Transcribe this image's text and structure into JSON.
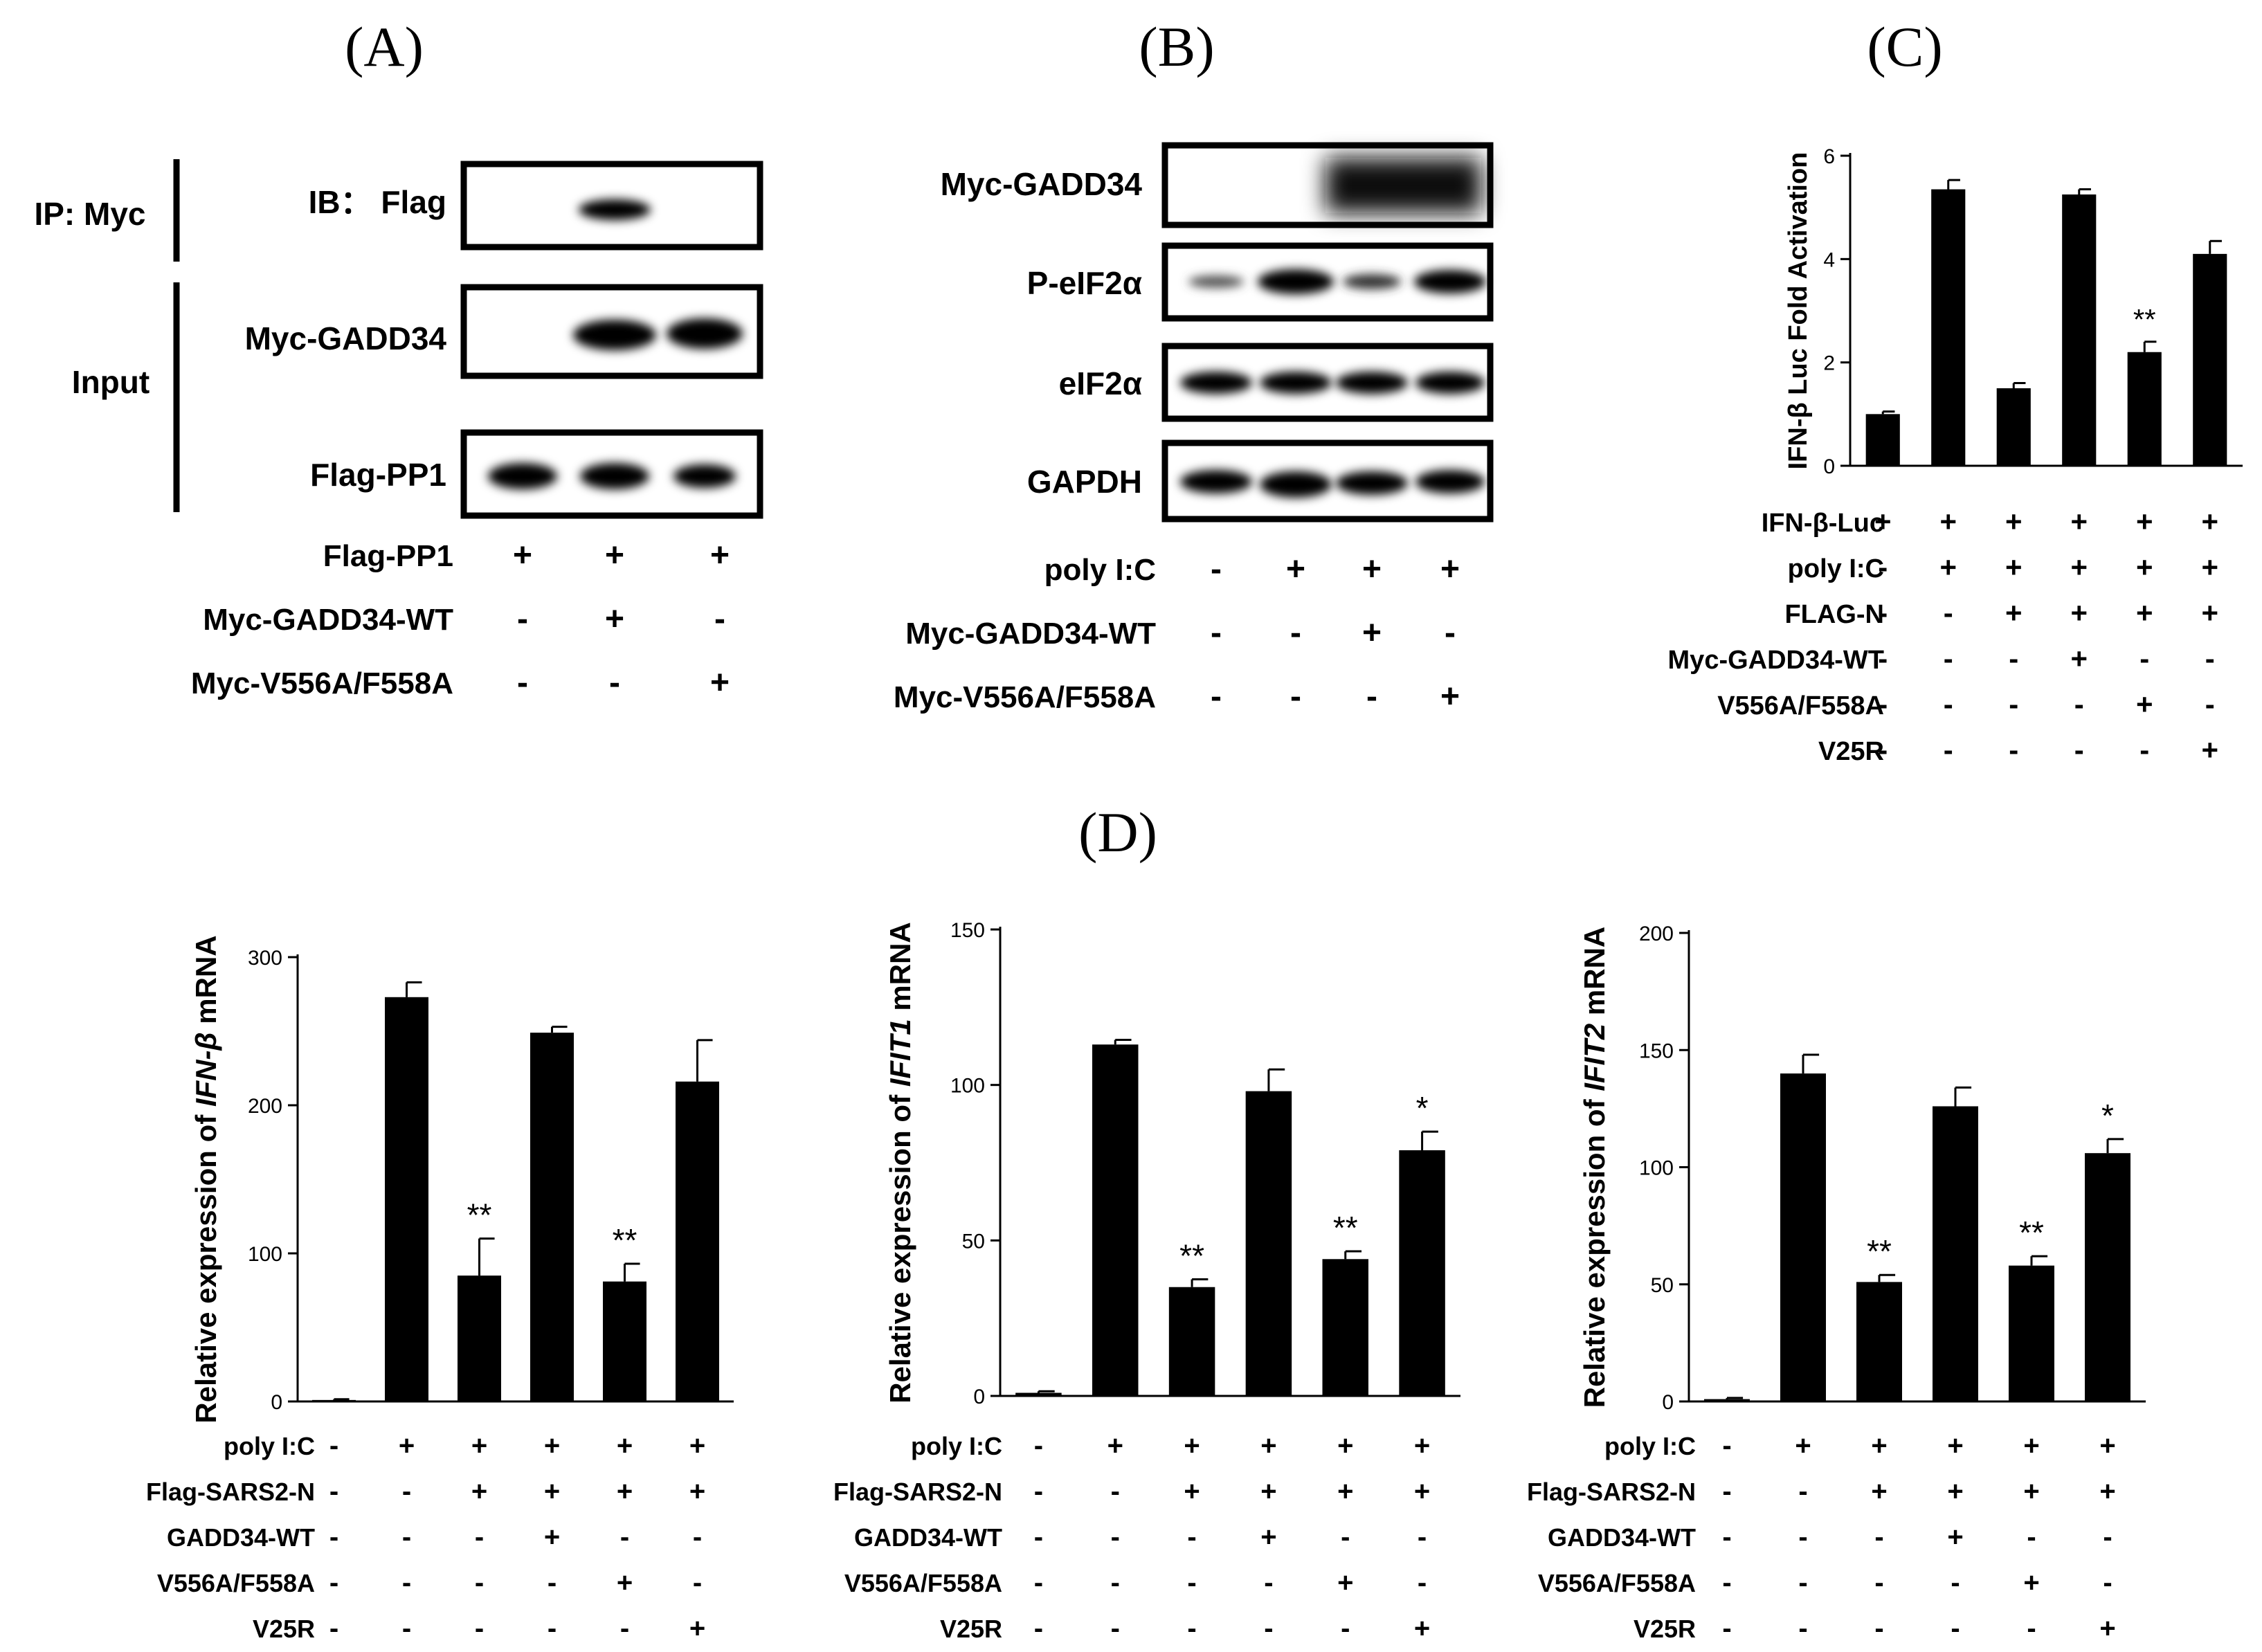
{
  "panels": {
    "A": {
      "label": "(A)",
      "ip_label": "IP: Myc",
      "input_label": "Input",
      "blots": [
        "IB： Flag",
        "Myc-GADD34",
        "Flag-PP1"
      ],
      "conditions": [
        {
          "name": "Flag-PP1",
          "values": [
            "+",
            "+",
            "+"
          ]
        },
        {
          "name": "Myc-GADD34-WT",
          "values": [
            "-",
            "+",
            "-"
          ]
        },
        {
          "name": "Myc-V556A/F558A",
          "values": [
            "-",
            "-",
            "+"
          ]
        }
      ]
    },
    "B": {
      "label": "(B)",
      "blots": [
        "Myc-GADD34",
        "P-eIF2α",
        "eIF2α",
        "GAPDH"
      ],
      "conditions": [
        {
          "name": "poly I:C",
          "values": [
            "-",
            "+",
            "+",
            "+"
          ]
        },
        {
          "name": "Myc-GADD34-WT",
          "values": [
            "-",
            "-",
            "+",
            "-"
          ]
        },
        {
          "name": "Myc-V556A/F558A",
          "values": [
            "-",
            "-",
            "-",
            "+"
          ]
        }
      ]
    },
    "C": {
      "label": "(C)",
      "conditions": [
        {
          "name": "IFN-β-Luc",
          "values": [
            "+",
            "+",
            "+",
            "+",
            "+",
            "+"
          ]
        },
        {
          "name": "poly I:C",
          "values": [
            "-",
            "+",
            "+",
            "+",
            "+",
            "+"
          ]
        },
        {
          "name": "FLAG-N",
          "values": [
            "-",
            "-",
            "+",
            "+",
            "+",
            "+"
          ]
        },
        {
          "name": "Myc-GADD34-WT",
          "values": [
            "-",
            "-",
            "-",
            "+",
            "-",
            "-"
          ]
        },
        {
          "name": "V556A/F558A",
          "values": [
            "-",
            "-",
            "-",
            "-",
            "+",
            "-"
          ]
        },
        {
          "name": "V25R",
          "values": [
            "-",
            "-",
            "-",
            "-",
            "-",
            "+"
          ]
        }
      ]
    },
    "D": {
      "label": "(D)"
    }
  },
  "chart_data": [
    {
      "type": "bar",
      "id": "C",
      "ylabel": "IFN-β Luc Fold Activation",
      "ylim": [
        0,
        6
      ],
      "yticks": [
        0,
        2,
        4,
        6
      ],
      "values": [
        1.0,
        5.35,
        1.5,
        5.25,
        2.2,
        4.1
      ],
      "errors": [
        0.05,
        0.18,
        0.1,
        0.1,
        0.2,
        0.25
      ],
      "significance": [
        "",
        "",
        "",
        "",
        "**",
        ""
      ]
    },
    {
      "type": "bar",
      "id": "D1",
      "ylabel_prefix": "Relative  expression of ",
      "ylabel_gene": "IFN-β",
      "ylabel_suffix": " mRNA",
      "ylim": [
        0,
        300
      ],
      "yticks": [
        0,
        100,
        200,
        300
      ],
      "values": [
        1,
        273,
        85,
        249,
        81,
        216
      ],
      "errors": [
        0.5,
        10,
        25,
        4,
        12,
        28
      ],
      "significance": [
        "",
        "",
        "**",
        "",
        "**",
        ""
      ]
    },
    {
      "type": "bar",
      "id": "D2",
      "ylabel_prefix": "Relative  expression of ",
      "ylabel_gene": "IFIT1",
      "ylabel_suffix": " mRNA",
      "ylim": [
        0,
        150
      ],
      "yticks": [
        0,
        50,
        100,
        150
      ],
      "values": [
        1,
        113,
        35,
        98,
        44,
        79
      ],
      "errors": [
        0.5,
        1.5,
        2.5,
        7,
        2.5,
        6
      ],
      "significance": [
        "",
        "",
        "**",
        "",
        "**",
        "*"
      ]
    },
    {
      "type": "bar",
      "id": "D3",
      "ylabel_prefix": "Relative  expression of ",
      "ylabel_gene": "IFIT2",
      "ylabel_suffix": " mRNA",
      "ylim": [
        0,
        200
      ],
      "yticks": [
        0,
        50,
        100,
        150,
        200
      ],
      "values": [
        1,
        140,
        51,
        126,
        58,
        106
      ],
      "errors": [
        0.5,
        8,
        3,
        8,
        4,
        6
      ],
      "significance": [
        "",
        "",
        "**",
        "",
        "**",
        "*"
      ]
    }
  ],
  "conditions_D": [
    {
      "name": "poly I:C",
      "values": [
        "-",
        "+",
        "+",
        "+",
        "+",
        "+"
      ]
    },
    {
      "name": "Flag-SARS2-N",
      "values": [
        "-",
        "-",
        "+",
        "+",
        "+",
        "+"
      ]
    },
    {
      "name": "GADD34-WT",
      "values": [
        "-",
        "-",
        "-",
        "+",
        "-",
        "-"
      ]
    },
    {
      "name": "V556A/F558A",
      "values": [
        "-",
        "-",
        "-",
        "-",
        "+",
        "-"
      ]
    },
    {
      "name": "V25R",
      "values": [
        "-",
        "-",
        "-",
        "-",
        "-",
        "+"
      ]
    }
  ]
}
